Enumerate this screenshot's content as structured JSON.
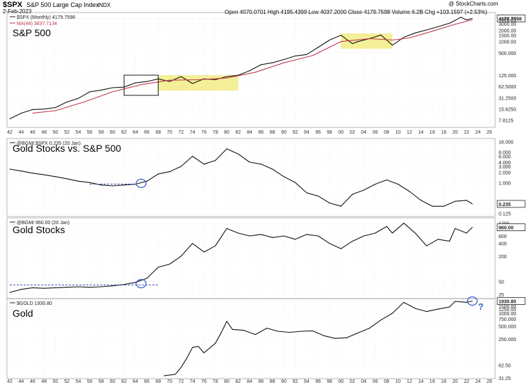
{
  "header": {
    "symbol": "$SPX",
    "description": "S&P 500 Large Cap Index",
    "exchange": "INDX",
    "date": "2-Feb-2023",
    "quote": "Open 4070.0701  High 4195.4399  Low 4037.2000  Close 4179.7598  Volume 6.2B  Chg +103.1597 (+2.53%)",
    "quote_icon": "triangle-up",
    "credit": "@ StockCharts.com"
  },
  "colors": {
    "price_line": "#111111",
    "ma_line": "#c0394b",
    "highlight": "#f3ec85",
    "circle": "#3a5fcd",
    "dashed": "#2f4fa8",
    "grid": "#dcdcdc"
  },
  "chart_data": [
    {
      "type": "line",
      "title": "S&P 500",
      "legend": [
        "$SPX (Monthly) 4179.7598",
        "MA(48) 3837.7134"
      ],
      "y_scale": "log",
      "ylim": [
        5,
        6000
      ],
      "y_ticks": [
        "4179.7598",
        "4000.00",
        "3000.00",
        "2000.00",
        "1500.00",
        "1000.00",
        "500.000",
        "125.000",
        "62.5000",
        "31.2500",
        "15.6250",
        "7.8125"
      ],
      "last_value_label": "4179.7598",
      "x_ticks": [
        "42",
        "44",
        "46",
        "48",
        "50",
        "52",
        "54",
        "56",
        "58",
        "60",
        "62",
        "64",
        "66",
        "68",
        "70",
        "72",
        "74",
        "76",
        "78",
        "80",
        "82",
        "84",
        "86",
        "88",
        "90",
        "92",
        "94",
        "96",
        "98",
        "00",
        "02",
        "04",
        "06",
        "08",
        "10",
        "12",
        "14",
        "16",
        "18",
        "20",
        "22",
        "24",
        "26"
      ],
      "annotations": [
        {
          "kind": "box",
          "from_year": 1962,
          "to_year": 1968
        },
        {
          "kind": "highlight",
          "from_year": 1968,
          "to_year": 1982
        },
        {
          "kind": "highlight",
          "from_year": 2000,
          "to_year": 2009
        }
      ],
      "series": [
        {
          "name": "$SPX (Monthly)",
          "x": [
            1942,
            1944,
            1946,
            1948,
            1950,
            1952,
            1954,
            1956,
            1958,
            1960,
            1962,
            1964,
            1966,
            1968,
            1970,
            1972,
            1974,
            1976,
            1978,
            1980,
            1982,
            1984,
            1986,
            1988,
            1990,
            1992,
            1994,
            1996,
            1998,
            2000,
            2002,
            2003,
            2005,
            2007,
            2009,
            2011,
            2013,
            2015,
            2017,
            2019,
            2020,
            2021,
            2022,
            2023
          ],
          "values": [
            8.5,
            12,
            15,
            15.5,
            17,
            24,
            30,
            45,
            50,
            58,
            60,
            78,
            85,
            100,
            85,
            115,
            75,
            100,
            95,
            115,
            125,
            165,
            240,
            270,
            330,
            410,
            450,
            700,
            1100,
            1480,
            880,
            1000,
            1200,
            1500,
            800,
            1300,
            1700,
            2050,
            2500,
            3100,
            3700,
            4500,
            3800,
            4179
          ]
        },
        {
          "name": "MA(48)",
          "x": [
            1946,
            1950,
            1955,
            1960,
            1965,
            1970,
            1975,
            1980,
            1985,
            1990,
            1995,
            2000,
            2005,
            2009,
            2012,
            2016,
            2020,
            2023
          ],
          "values": [
            12,
            14,
            24,
            45,
            70,
            92,
            95,
            105,
            150,
            270,
            420,
            1000,
            1200,
            1100,
            1250,
            1900,
            2900,
            3837
          ]
        }
      ]
    },
    {
      "type": "line",
      "title": "Gold Stocks vs. S&P 500",
      "legend": [
        "@BGMI:$SPX 0.235 (20 Jan)"
      ],
      "y_scale": "log",
      "ylim": [
        0.1,
        20
      ],
      "y_ticks": [
        "16.000",
        "8.000",
        "6.000",
        "4.000",
        "3.000",
        "2.000",
        "1.000",
        "0.235",
        "0.125"
      ],
      "last_value_label": "0.235",
      "annotations": [
        {
          "kind": "dashed-line",
          "from_year": 1956,
          "to_year": 1964,
          "value": 0.9
        },
        {
          "kind": "circle",
          "year": 1965,
          "value": 0.95
        }
      ],
      "series": [
        {
          "name": "@BGMI:$SPX",
          "x": [
            1942,
            1944,
            1946,
            1948,
            1950,
            1952,
            1954,
            1956,
            1958,
            1960,
            1962,
            1964,
            1966,
            1968,
            1970,
            1972,
            1974,
            1976,
            1978,
            1980,
            1982,
            1984,
            1986,
            1988,
            1990,
            1992,
            1994,
            1996,
            1998,
            2000,
            2002,
            2004,
            2006,
            2008,
            2010,
            2012,
            2014,
            2016,
            2018,
            2020,
            2022,
            2023
          ],
          "values": [
            2.5,
            2.2,
            1.9,
            1.7,
            1.5,
            1.3,
            1.1,
            1.0,
            0.85,
            0.8,
            0.85,
            0.9,
            1.1,
            1.8,
            2.1,
            3.0,
            6.0,
            3.5,
            4.5,
            10,
            7,
            4,
            3.5,
            2.5,
            1.5,
            1.0,
            0.5,
            0.4,
            0.25,
            0.2,
            0.45,
            0.6,
            0.9,
            1.2,
            0.9,
            0.55,
            0.3,
            0.2,
            0.2,
            0.28,
            0.3,
            0.235
          ]
        }
      ]
    },
    {
      "type": "line",
      "title": "Gold Stocks",
      "legend": [
        "@BGMI 960.00 (20 Jan)"
      ],
      "y_scale": "log",
      "ylim": [
        20,
        1600
      ],
      "y_ticks": [
        "1200",
        "960.00",
        "600",
        "400",
        "200",
        "50",
        "25"
      ],
      "last_value_label": "960.00",
      "annotations": [
        {
          "kind": "dashed-line",
          "from_year": 1942,
          "to_year": 1968,
          "value": 42
        },
        {
          "kind": "circle",
          "year": 1965,
          "value": 45
        }
      ],
      "series": [
        {
          "name": "@BGMI",
          "x": [
            1942,
            1944,
            1946,
            1948,
            1950,
            1952,
            1954,
            1956,
            1958,
            1960,
            1962,
            1964,
            1966,
            1968,
            1970,
            1972,
            1974,
            1976,
            1978,
            1980,
            1982,
            1984,
            1986,
            1988,
            1990,
            1992,
            1994,
            1996,
            1998,
            2000,
            2002,
            2004,
            2006,
            2008,
            2009,
            2011,
            2013,
            2015,
            2017,
            2019,
            2020,
            2022,
            2023
          ],
          "values": [
            28,
            33,
            36,
            35,
            36,
            37,
            38,
            37,
            38,
            40,
            43,
            48,
            60,
            110,
            130,
            200,
            400,
            250,
            350,
            900,
            700,
            600,
            650,
            550,
            600,
            500,
            650,
            600,
            400,
            300,
            450,
            600,
            700,
            1000,
            700,
            1200,
            700,
            350,
            500,
            450,
            900,
            700,
            960
          ]
        }
      ]
    },
    {
      "type": "line",
      "title": "Gold",
      "legend": [
        "$GOLD 1930.80"
      ],
      "y_scale": "log",
      "ylim": [
        30,
        2200
      ],
      "y_ticks": [
        "1930.80",
        "1500.00",
        "1250.00",
        "1000.00",
        "750.000",
        "500.000",
        "250.000",
        "62.50",
        "31.25"
      ],
      "last_value_label": "1930.80",
      "annotations": [
        {
          "kind": "circle",
          "year": 2023,
          "value": 1930
        },
        {
          "kind": "text",
          "text": "?",
          "year": 2024
        }
      ],
      "series": [
        {
          "name": "$GOLD",
          "x": [
            1969,
            1971,
            1972,
            1973,
            1974,
            1975,
            1976,
            1978,
            1979,
            1980,
            1981,
            1983,
            1985,
            1987,
            1989,
            1991,
            1993,
            1995,
            1997,
            1999,
            2001,
            2003,
            2005,
            2007,
            2009,
            2011,
            2013,
            2015,
            2017,
            2019,
            2020,
            2022,
            2023
          ],
          "values": [
            35,
            38,
            55,
            90,
            160,
            170,
            120,
            200,
            350,
            650,
            420,
            400,
            320,
            450,
            380,
            360,
            380,
            390,
            300,
            260,
            270,
            350,
            450,
            700,
            1000,
            1800,
            1300,
            1100,
            1250,
            1400,
            1900,
            1800,
            1930
          ]
        }
      ]
    }
  ]
}
